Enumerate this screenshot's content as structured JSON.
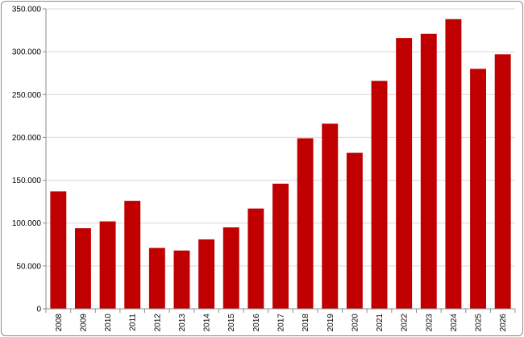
{
  "chart_data": {
    "type": "bar",
    "categories": [
      "2008",
      "2009",
      "2010",
      "2011",
      "2012",
      "2013",
      "2014",
      "2015",
      "2016",
      "2017",
      "2018",
      "2019",
      "2020",
      "2021",
      "2022",
      "2023",
      "2024",
      "2025",
      "2026"
    ],
    "values": [
      137000,
      94000,
      102000,
      126000,
      71000,
      68000,
      81000,
      95000,
      117000,
      146000,
      199000,
      216000,
      182000,
      266000,
      316000,
      321000,
      338000,
      280000,
      297000
    ],
    "y_ticks": [
      "0",
      "50.000",
      "100.000",
      "150.000",
      "200.000",
      "250.000",
      "300.000",
      "350.000"
    ],
    "ylim": [
      0,
      350000
    ],
    "grid": true,
    "bar_color": "#c00000",
    "grid_color": "#d9d9d9",
    "axis_color": "#8c8c8c",
    "title": "",
    "xlabel": "",
    "ylabel": ""
  }
}
